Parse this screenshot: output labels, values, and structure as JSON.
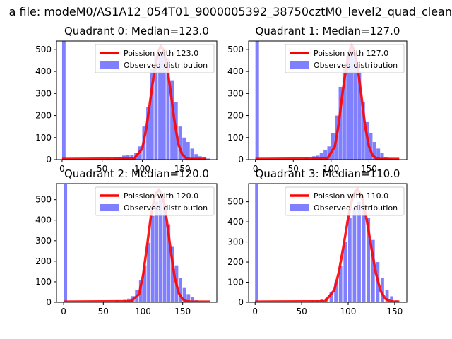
{
  "figure": {
    "suptitle": "a file: modeM0/AS1A12_054T01_9000005392_38750cztM0_level2_quad_clean"
  },
  "colors": {
    "hist": "#8080ff",
    "poisson": "#ff0000",
    "axes": "#000000"
  },
  "chart_data": [
    {
      "type": "bar",
      "title": "Quadrant 0: Median=123.0",
      "xlim": [
        -7,
        193
      ],
      "ylim": [
        0,
        538
      ],
      "xticks": [
        0,
        50,
        100,
        150
      ],
      "yticks": [
        0,
        100,
        200,
        300,
        400,
        500
      ],
      "grid": false,
      "legend_position": "top-right",
      "bin_width": 4.3,
      "series": [
        {
          "name": "Poission with 123.0",
          "kind": "line",
          "values": [
            [
              0,
              3
            ],
            [
              90,
              5
            ],
            [
              100,
              50
            ],
            [
              105,
              140
            ],
            [
              110,
              270
            ],
            [
              115,
              400
            ],
            [
              120,
              490
            ],
            [
              123,
              515
            ],
            [
              126,
              500
            ],
            [
              130,
              440
            ],
            [
              135,
              320
            ],
            [
              140,
              180
            ],
            [
              145,
              70
            ],
            [
              150,
              22
            ],
            [
              155,
              6
            ],
            [
              160,
              3
            ],
            [
              180,
              3
            ]
          ]
        },
        {
          "name": "Observed distribution",
          "kind": "hist",
          "values": [
            [
              0,
              540
            ],
            [
              55,
              5
            ],
            [
              65,
              8
            ],
            [
              70,
              10
            ],
            [
              75,
              18
            ],
            [
              80,
              20
            ],
            [
              85,
              22
            ],
            [
              90,
              30
            ],
            [
              95,
              60
            ],
            [
              100,
              150
            ],
            [
              105,
              240
            ],
            [
              110,
              410
            ],
            [
              115,
              470
            ],
            [
              120,
              480
            ],
            [
              125,
              500
            ],
            [
              130,
              460
            ],
            [
              135,
              360
            ],
            [
              140,
              260
            ],
            [
              145,
              150
            ],
            [
              150,
              100
            ],
            [
              155,
              80
            ],
            [
              160,
              50
            ],
            [
              165,
              25
            ],
            [
              170,
              15
            ],
            [
              175,
              10
            ],
            [
              180,
              5
            ]
          ]
        }
      ]
    },
    {
      "type": "bar",
      "title": "Quadrant 1: Median=127.0",
      "xlim": [
        -9,
        200
      ],
      "ylim": [
        0,
        538
      ],
      "xticks": [
        0,
        50,
        100,
        150
      ],
      "yticks": [
        0,
        100,
        200,
        300,
        400,
        500
      ],
      "grid": false,
      "legend_position": "top-right",
      "bin_width": 4.7,
      "series": [
        {
          "name": "Poission with 127.0",
          "kind": "line",
          "values": [
            [
              0,
              3
            ],
            [
              95,
              5
            ],
            [
              105,
              60
            ],
            [
              110,
              160
            ],
            [
              115,
              300
            ],
            [
              120,
              420
            ],
            [
              125,
              500
            ],
            [
              127,
              520
            ],
            [
              130,
              500
            ],
            [
              135,
              420
            ],
            [
              140,
              290
            ],
            [
              145,
              150
            ],
            [
              150,
              60
            ],
            [
              155,
              18
            ],
            [
              160,
              5
            ],
            [
              165,
              3
            ],
            [
              190,
              3
            ]
          ]
        },
        {
          "name": "Observed distribution",
          "kind": "hist",
          "values": [
            [
              0,
              540
            ],
            [
              65,
              8
            ],
            [
              75,
              15
            ],
            [
              80,
              18
            ],
            [
              85,
              30
            ],
            [
              90,
              45
            ],
            [
              95,
              60
            ],
            [
              100,
              120
            ],
            [
              105,
              200
            ],
            [
              110,
              330
            ],
            [
              115,
              410
            ],
            [
              120,
              470
            ],
            [
              125,
              510
            ],
            [
              130,
              480
            ],
            [
              135,
              400
            ],
            [
              140,
              260
            ],
            [
              145,
              170
            ],
            [
              150,
              120
            ],
            [
              155,
              80
            ],
            [
              160,
              50
            ],
            [
              165,
              30
            ],
            [
              170,
              12
            ],
            [
              175,
              8
            ]
          ]
        }
      ]
    },
    {
      "type": "bar",
      "title": "Quadrant 2: Median=120.0",
      "xlim": [
        -9,
        193
      ],
      "ylim": [
        0,
        578
      ],
      "xticks": [
        0,
        50,
        100,
        150
      ],
      "yticks": [
        0,
        100,
        200,
        300,
        400,
        500
      ],
      "grid": false,
      "legend_position": "top-right",
      "bin_width": 4.4,
      "series": [
        {
          "name": "Poission with 120.0",
          "kind": "line",
          "values": [
            [
              0,
              3
            ],
            [
              85,
              5
            ],
            [
              95,
              40
            ],
            [
              100,
              130
            ],
            [
              105,
              270
            ],
            [
              110,
              420
            ],
            [
              115,
              520
            ],
            [
              120,
              550
            ],
            [
              125,
              510
            ],
            [
              130,
              400
            ],
            [
              135,
              250
            ],
            [
              140,
              120
            ],
            [
              145,
              45
            ],
            [
              150,
              15
            ],
            [
              155,
              5
            ],
            [
              160,
              3
            ],
            [
              185,
              3
            ]
          ]
        },
        {
          "name": "Observed distribution",
          "kind": "hist",
          "values": [
            [
              0,
              580
            ],
            [
              65,
              10
            ],
            [
              75,
              12
            ],
            [
              80,
              18
            ],
            [
              85,
              30
            ],
            [
              90,
              60
            ],
            [
              95,
              110
            ],
            [
              100,
              180
            ],
            [
              105,
              290
            ],
            [
              110,
              420
            ],
            [
              115,
              490
            ],
            [
              120,
              520
            ],
            [
              125,
              480
            ],
            [
              130,
              380
            ],
            [
              135,
              270
            ],
            [
              140,
              180
            ],
            [
              145,
              120
            ],
            [
              150,
              70
            ],
            [
              155,
              40
            ],
            [
              160,
              25
            ],
            [
              165,
              10
            ],
            [
              170,
              5
            ]
          ]
        }
      ]
    },
    {
      "type": "bar",
      "title": "Quadrant 3: Median=110.0",
      "xlim": [
        -7,
        163
      ],
      "ylim": [
        0,
        590
      ],
      "xticks": [
        0,
        50,
        100,
        150
      ],
      "yticks": [
        0,
        100,
        200,
        300,
        400,
        500
      ],
      "grid": false,
      "legend_position": "top-right",
      "bin_width": 3.6,
      "series": [
        {
          "name": "Poission with 110.0",
          "kind": "line",
          "values": [
            [
              0,
              3
            ],
            [
              75,
              5
            ],
            [
              85,
              60
            ],
            [
              90,
              150
            ],
            [
              95,
              280
            ],
            [
              100,
              420
            ],
            [
              105,
              530
            ],
            [
              110,
              565
            ],
            [
              115,
              520
            ],
            [
              120,
              410
            ],
            [
              125,
              270
            ],
            [
              130,
              140
            ],
            [
              135,
              55
            ],
            [
              140,
              18
            ],
            [
              145,
              6
            ],
            [
              150,
              3
            ],
            [
              155,
              3
            ]
          ]
        },
        {
          "name": "Observed distribution",
          "kind": "hist",
          "values": [
            [
              0,
              590
            ],
            [
              60,
              8
            ],
            [
              65,
              10
            ],
            [
              70,
              15
            ],
            [
              75,
              20
            ],
            [
              80,
              50
            ],
            [
              85,
              100
            ],
            [
              90,
              180
            ],
            [
              95,
              300
            ],
            [
              100,
              420
            ],
            [
              105,
              470
            ],
            [
              110,
              500
            ],
            [
              115,
              480
            ],
            [
              120,
              420
            ],
            [
              125,
              310
            ],
            [
              130,
              200
            ],
            [
              135,
              120
            ],
            [
              140,
              60
            ],
            [
              145,
              30
            ],
            [
              150,
              10
            ]
          ]
        }
      ]
    }
  ]
}
